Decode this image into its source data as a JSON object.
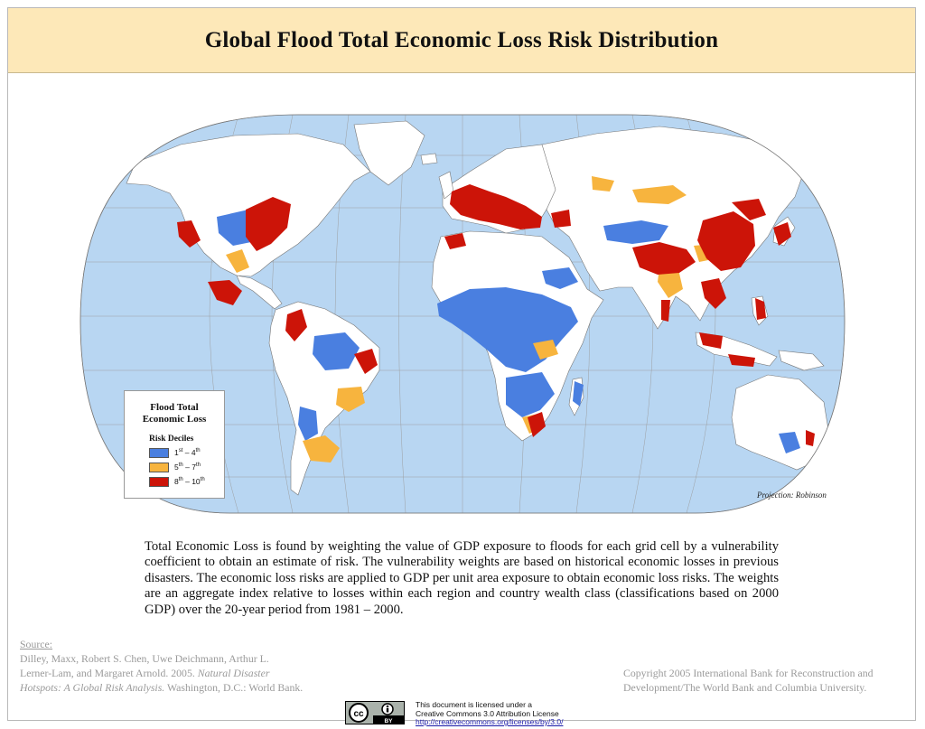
{
  "title": "Global Flood Total Economic Loss Risk Distribution",
  "legend": {
    "title_line1": "Flood Total",
    "title_line2": "Economic Loss",
    "subtitle": "Risk Deciles",
    "classes": [
      {
        "from": "1",
        "from_sup": "st",
        "to": "4",
        "to_sup": "th",
        "color": "#4a7fe0"
      },
      {
        "from": "5",
        "from_sup": "th",
        "to": "7",
        "to_sup": "th",
        "color": "#f7b43e"
      },
      {
        "from": "8",
        "from_sup": "th",
        "to": "10",
        "to_sup": "th",
        "color": "#cc1408"
      }
    ]
  },
  "projection_label": "Projection: Robinson",
  "description": "Total Economic Loss is found by weighting the value of GDP exposure to floods for each grid cell by a vulnerability coefficient to obtain an estimate of risk. The vulnerability weights are based on historical economic losses in previous disasters. The economic loss risks are applied to GDP per unit area exposure to obtain economic loss risks. The weights are an aggregate index relative to losses within each region and country wealth class (classifications based on 2000 GDP) over the 20-year period from 1981 – 2000.",
  "source": {
    "heading": "Source:",
    "line1": "Dilley, Maxx, Robert S. Chen, Uwe Deichmann, Arthur L.",
    "line2_plain": "Lerner-Lam, and Margaret Arnold. 2005. ",
    "line2_italic": "Natural Disaster",
    "line3_italic": "Hotspots: A Global Risk Analysis.",
    "line3_plain": " Washington, D.C.: World Bank."
  },
  "copyright": {
    "line1": "Copyright 2005 International Bank for Reconstruction and",
    "line2": "Development/The World Bank and Columbia University."
  },
  "license": {
    "badge_cc": "cc",
    "badge_by": "BY",
    "line1": "This document is licensed under a",
    "line2": "Creative Commons 3.0 Attribution License",
    "link": "http://creativecommons.org/licenses/by/3.0/"
  },
  "colors": {
    "ocean": "#b8d6f2",
    "land": "#ffffff",
    "risk_low": "#4a7fe0",
    "risk_mid": "#f7b43e",
    "risk_high": "#cc1408",
    "header_bg": "#fde8b8"
  }
}
